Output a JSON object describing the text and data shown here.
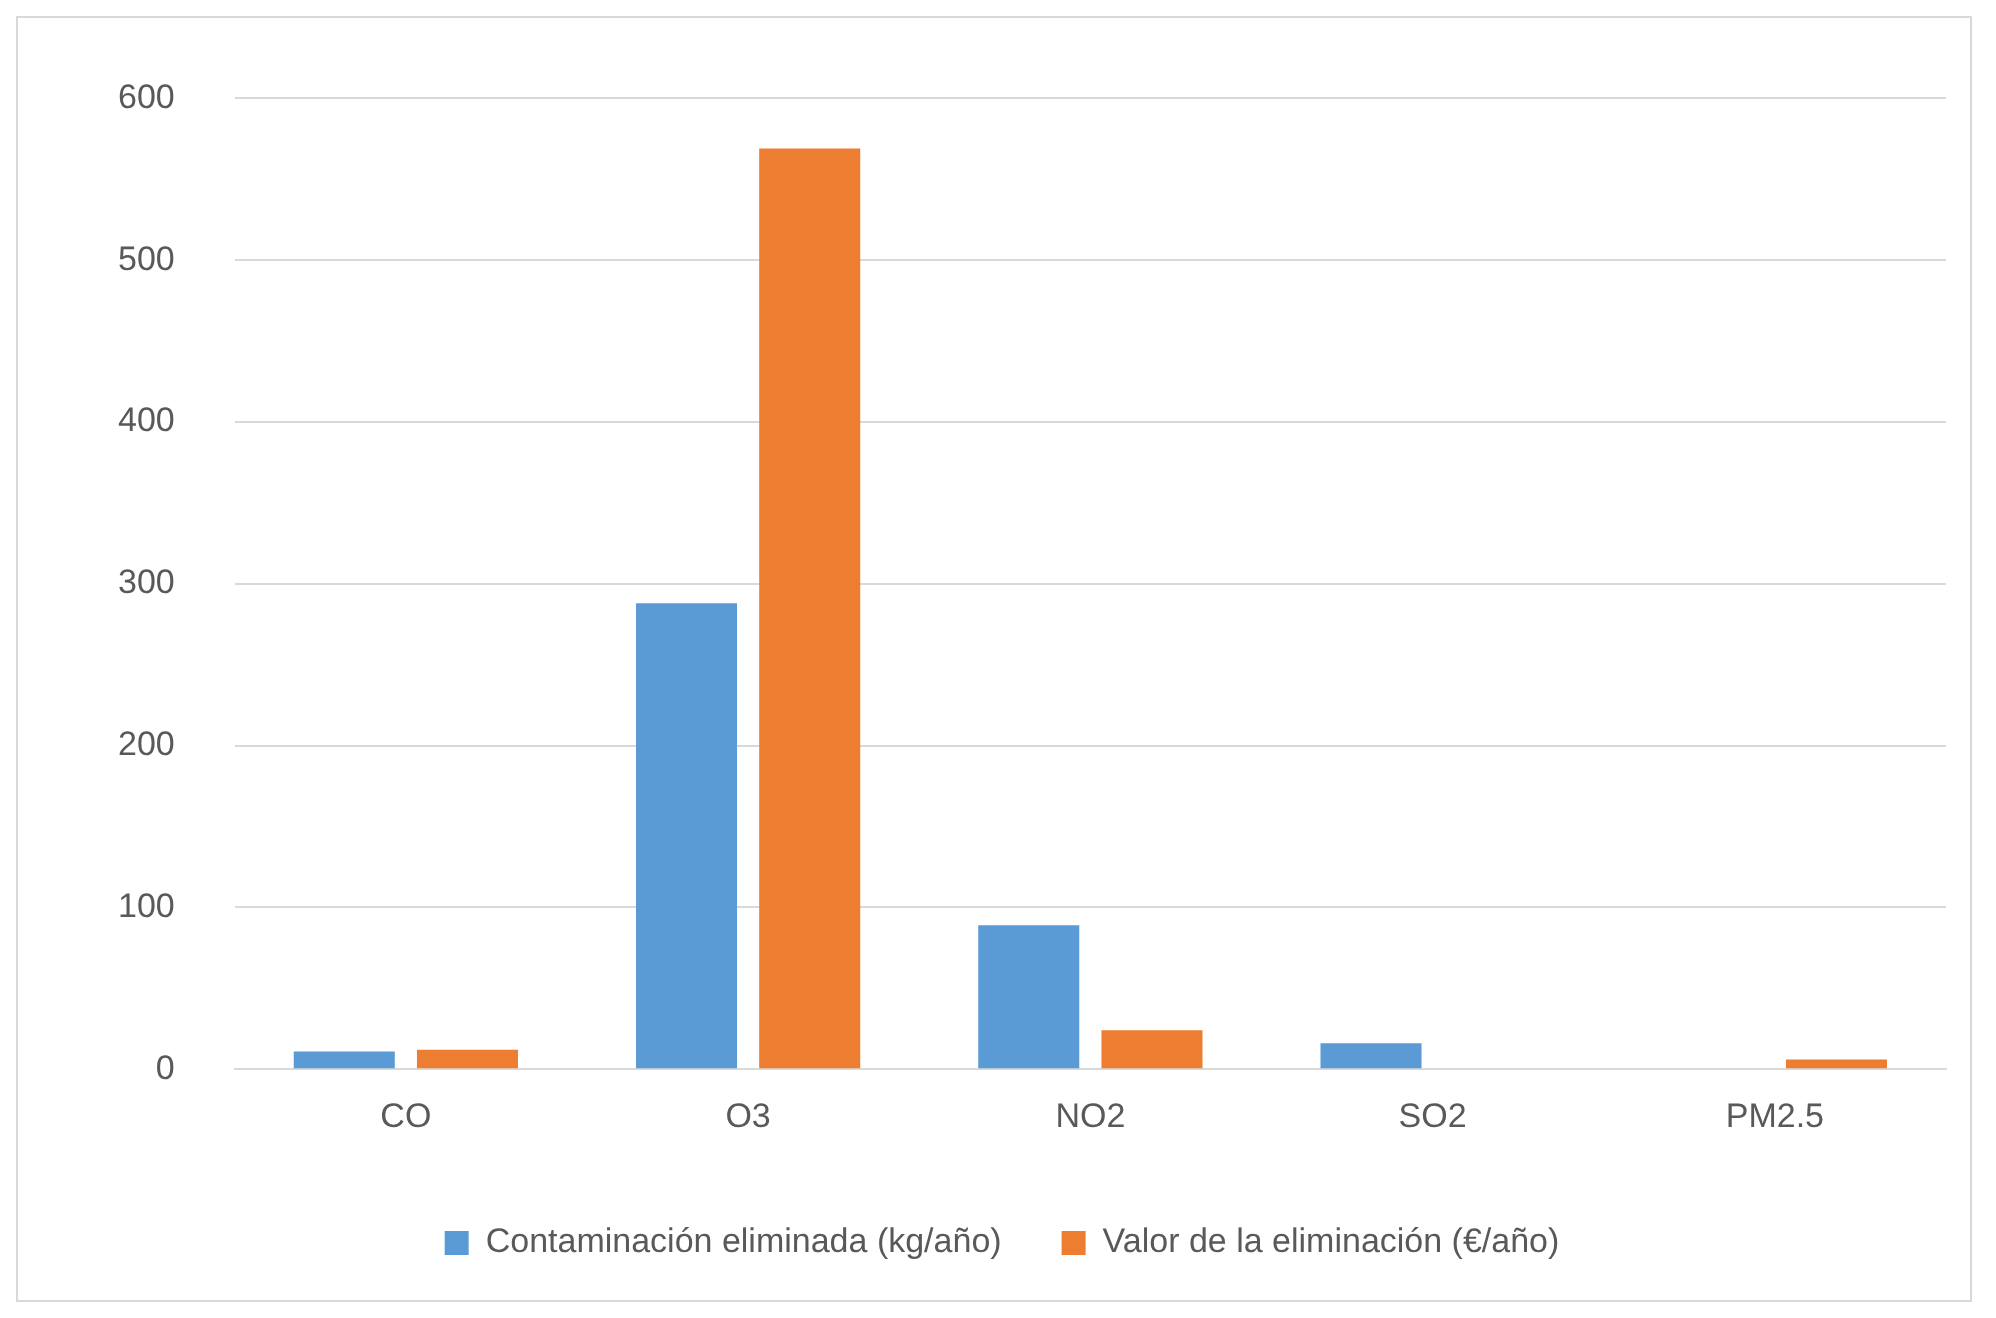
{
  "chart_data": {
    "type": "bar",
    "categories": [
      "CO",
      "O3",
      "NO2",
      "SO2",
      "PM2.5"
    ],
    "series": [
      {
        "name": "Contaminación eliminada (kg/año)",
        "color": "#5b9bd5",
        "values": [
          11,
          288,
          89,
          16,
          0
        ]
      },
      {
        "name": "Valor de la eliminación (€/año)",
        "color": "#ed7d31",
        "values": [
          12,
          569,
          24,
          0,
          6
        ]
      }
    ],
    "ylim": [
      0,
      600
    ],
    "yticks": [
      0,
      100,
      200,
      300,
      400,
      500,
      600
    ],
    "grid": "y",
    "legend": "bottom"
  }
}
